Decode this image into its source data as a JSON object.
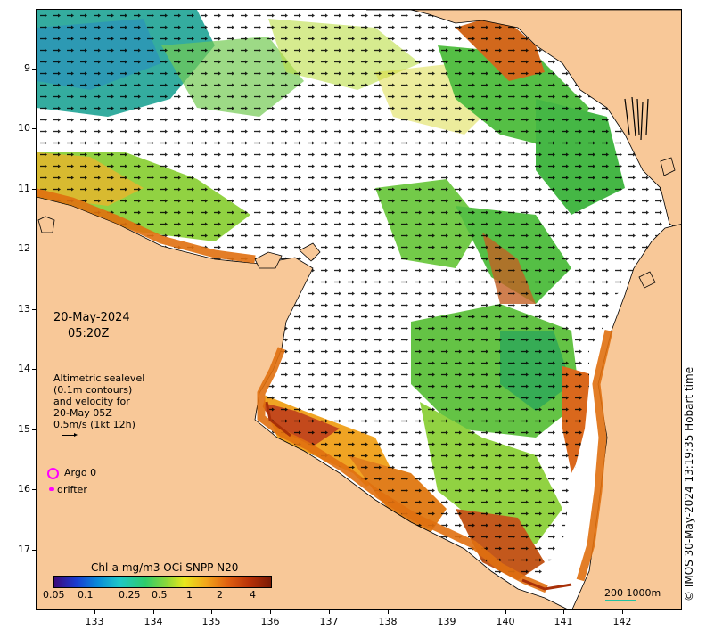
{
  "map": {
    "date": "20-May-2024",
    "time": "05:20Z",
    "altimetry_lines": [
      "Altimetric sealevel",
      "(0.1m contours)",
      "and velocity for",
      "20-May 05Z",
      "0.5m/s (1kt 12h)"
    ],
    "argo_label": "Argo 0",
    "drifter_label": "drifter",
    "colorbar_title": "Chl-a mg/m3 OCi SNPP N20",
    "colorbar_ticks": [
      "0.05",
      "0.1",
      "0.25",
      "0.5",
      "1",
      "2",
      "4"
    ],
    "scale_label": "200  1000m",
    "credit": "© IMOS 30-May-2024 13:19:35 Hobart time",
    "lat_labels": [
      "9",
      "10",
      "11",
      "12",
      "13",
      "14",
      "15",
      "16",
      "17"
    ],
    "lon_labels": [
      "133",
      "134",
      "135",
      "136",
      "137",
      "138",
      "139",
      "140",
      "141",
      "142"
    ],
    "colors": {
      "land": "#f8c898",
      "ocean_nodata": "#ffffff",
      "argo": "#ff00ff",
      "drifter": "#ff00ff",
      "scale_bar": "#23c0a0"
    }
  }
}
